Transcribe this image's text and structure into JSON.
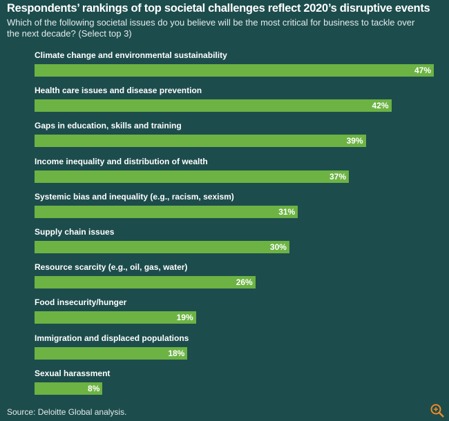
{
  "chart_data": {
    "type": "bar",
    "orientation": "horizontal",
    "title": "Respondents’ rankings of top societal challenges reflect 2020’s disruptive events",
    "subtitle": "Which of the following societal issues do you believe will be the most critical for business to tackle over the next decade? (Select top 3)",
    "categories": [
      "Climate change and environmental sustainability",
      "Health care issues and disease prevention",
      "Gaps in education, skills and training",
      "Income inequality and distribution of wealth",
      "Systemic bias and inequality (e.g., racism, sexism)",
      "Supply chain issues",
      "Resource scarcity (e.g., oil, gas, water)",
      "Food insecurity/hunger",
      "Immigration and displaced populations",
      "Sexual harassment"
    ],
    "values": [
      47,
      42,
      39,
      37,
      31,
      30,
      26,
      19,
      18,
      8
    ],
    "value_labels": [
      "47%",
      "42%",
      "39%",
      "37%",
      "31%",
      "30%",
      "26%",
      "19%",
      "18%",
      "8%"
    ],
    "color": "#6cb344",
    "source": "Source: Deloitte Global analysis."
  }
}
